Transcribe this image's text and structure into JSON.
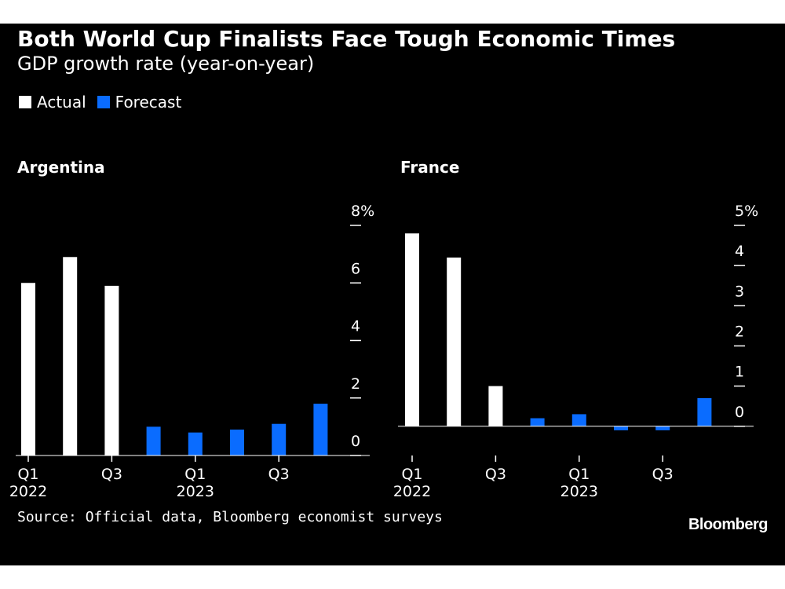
{
  "header": {
    "title": "Both World Cup Finalists Face Tough Economic Times",
    "subtitle": "GDP growth rate (year-on-year)"
  },
  "legend": [
    {
      "label": "Actual",
      "color": "#ffffff"
    },
    {
      "label": "Forecast",
      "color": "#0a6cff"
    }
  ],
  "footer": {
    "source": "Source: Official data, Bloomberg economist surveys",
    "logo": "Bloomberg"
  },
  "chart_data": [
    {
      "type": "bar",
      "title": "Argentina",
      "categories": [
        "Q1 2022",
        "Q2 2022",
        "Q3 2022",
        "Q4 2022",
        "Q1 2023",
        "Q2 2023",
        "Q3 2023",
        "Q4 2023"
      ],
      "x_tick_labels": [
        {
          "index": 0,
          "line1": "Q1",
          "line2": "2022"
        },
        {
          "index": 2,
          "line1": "Q3",
          "line2": ""
        },
        {
          "index": 4,
          "line1": "Q1",
          "line2": "2023"
        },
        {
          "index": 6,
          "line1": "Q3",
          "line2": ""
        }
      ],
      "series": [
        {
          "name": "Actual",
          "values": [
            6.0,
            6.9,
            5.9,
            null,
            null,
            null,
            null,
            null
          ]
        },
        {
          "name": "Forecast",
          "values": [
            null,
            null,
            null,
            1.0,
            0.8,
            0.9,
            1.1,
            1.8
          ]
        }
      ],
      "ylim": [
        0,
        8
      ],
      "y_ticks": [
        0,
        2,
        4,
        6,
        8
      ],
      "y_tick_labels": [
        "0",
        "2",
        "4",
        "6",
        "8%"
      ],
      "y_axis_position": "right"
    },
    {
      "type": "bar",
      "title": "France",
      "categories": [
        "Q1 2022",
        "Q2 2022",
        "Q3 2022",
        "Q4 2022",
        "Q1 2023",
        "Q2 2023",
        "Q3 2023",
        "Q4 2023"
      ],
      "x_tick_labels": [
        {
          "index": 0,
          "line1": "Q1",
          "line2": "2022"
        },
        {
          "index": 2,
          "line1": "Q3",
          "line2": ""
        },
        {
          "index": 4,
          "line1": "Q1",
          "line2": "2023"
        },
        {
          "index": 6,
          "line1": "Q3",
          "line2": ""
        }
      ],
      "series": [
        {
          "name": "Actual",
          "values": [
            4.8,
            4.2,
            1.0,
            null,
            null,
            null,
            null,
            null
          ]
        },
        {
          "name": "Forecast",
          "values": [
            null,
            null,
            null,
            0.2,
            0.3,
            -0.1,
            -0.1,
            0.7
          ]
        }
      ],
      "ylim": [
        -0.2,
        5
      ],
      "y_ticks": [
        0,
        1,
        2,
        3,
        4,
        5
      ],
      "y_tick_labels": [
        "0",
        "1",
        "2",
        "3",
        "4",
        "5%"
      ],
      "y_axis_position": "right"
    }
  ]
}
